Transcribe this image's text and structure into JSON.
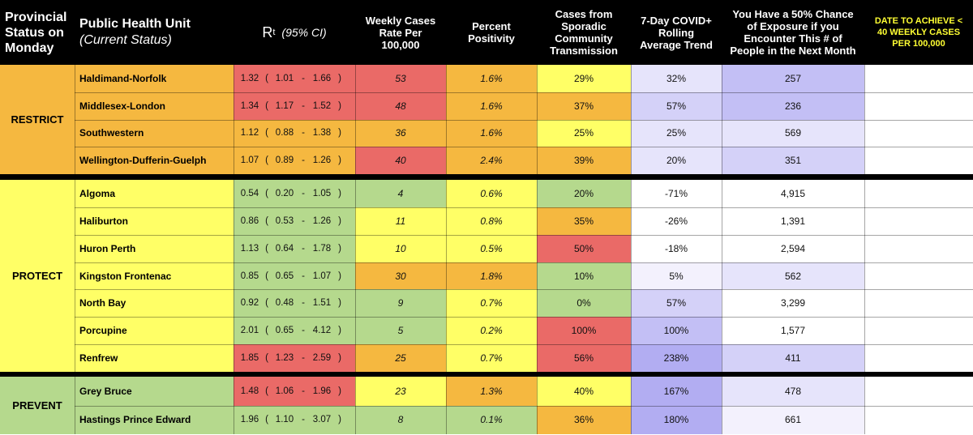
{
  "colors": {
    "restrict": "#f5b840",
    "protect": "#ffff66",
    "prevent": "#b5d98d",
    "red": "#ea6a67",
    "orange": "#f5b840",
    "yellow": "#ffff66",
    "green": "#b5d98d",
    "purple_1": "#f3f1fd",
    "purple_2": "#e6e4fb",
    "purple_3": "#d4d1f8",
    "purple_4": "#c3bff5",
    "purple_5": "#b2adf2"
  },
  "headers": {
    "status": "Provincial Status on Monday",
    "unit": "Public Health Unit",
    "unit_sub": "(Current Status)",
    "rt": "R",
    "rt_sub": "t",
    "rt_ci": "(95% CI)",
    "weekly": "Weekly Cases Rate Per 100,000",
    "positivity": "Percent Positivity",
    "sporadic": "Cases from Sporadic Community Transmission",
    "trend": "7-Day COVID+ Rolling Average Trend",
    "exposure": "You Have a 50% Chance of Exposure if you Encounter This # of People in the Next Month",
    "date": "DATE TO ACHIEVE < 40 WEEKLY CASES PER 100,000"
  },
  "groups": [
    {
      "status": "RESTRICT",
      "color": "restrict",
      "rows": [
        {
          "unit": "Haldimand-Norfolk",
          "rt": "1.32",
          "lo": "1.01",
          "hi": "1.66",
          "rt_color": "red",
          "weekly": "53",
          "weekly_color": "red",
          "pos": "1.6%",
          "pos_color": "orange",
          "spor": "29%",
          "spor_color": "yellow",
          "trend": "32%",
          "trend_color": "purple_2",
          "exp": "257",
          "exp_color": "purple_4",
          "date": ""
        },
        {
          "unit": "Middlesex-London",
          "rt": "1.34",
          "lo": "1.17",
          "hi": "1.52",
          "rt_color": "red",
          "weekly": "48",
          "weekly_color": "red",
          "pos": "1.6%",
          "pos_color": "orange",
          "spor": "37%",
          "spor_color": "orange",
          "trend": "57%",
          "trend_color": "purple_3",
          "exp": "236",
          "exp_color": "purple_4",
          "date": ""
        },
        {
          "unit": "Southwestern",
          "rt": "1.12",
          "lo": "0.88",
          "hi": "1.38",
          "rt_color": "orange",
          "weekly": "36",
          "weekly_color": "orange",
          "pos": "1.6%",
          "pos_color": "orange",
          "spor": "25%",
          "spor_color": "yellow",
          "trend": "25%",
          "trend_color": "purple_2",
          "exp": "569",
          "exp_color": "purple_2",
          "date": ""
        },
        {
          "unit": "Wellington-Dufferin-Guelph",
          "rt": "1.07",
          "lo": "0.89",
          "hi": "1.26",
          "rt_color": "orange",
          "weekly": "40",
          "weekly_color": "red",
          "pos": "2.4%",
          "pos_color": "orange",
          "spor": "39%",
          "spor_color": "orange",
          "trend": "20%",
          "trend_color": "purple_2",
          "exp": "351",
          "exp_color": "purple_3",
          "date": ""
        }
      ]
    },
    {
      "status": "PROTECT",
      "color": "protect",
      "rows": [
        {
          "unit": "Algoma",
          "rt": "0.54",
          "lo": "0.20",
          "hi": "1.05",
          "rt_color": "green",
          "weekly": "4",
          "weekly_color": "green",
          "pos": "0.6%",
          "pos_color": "yellow",
          "spor": "20%",
          "spor_color": "green",
          "trend": "-71%",
          "trend_color": "",
          "exp": "4,915",
          "exp_color": "",
          "date": ""
        },
        {
          "unit": "Haliburton",
          "rt": "0.86",
          "lo": "0.53",
          "hi": "1.26",
          "rt_color": "green",
          "weekly": "11",
          "weekly_color": "yellow",
          "pos": "0.8%",
          "pos_color": "yellow",
          "spor": "35%",
          "spor_color": "orange",
          "trend": "-26%",
          "trend_color": "",
          "exp": "1,391",
          "exp_color": "",
          "date": ""
        },
        {
          "unit": "Huron Perth",
          "rt": "1.13",
          "lo": "0.64",
          "hi": "1.78",
          "rt_color": "green",
          "weekly": "10",
          "weekly_color": "yellow",
          "pos": "0.5%",
          "pos_color": "yellow",
          "spor": "50%",
          "spor_color": "red",
          "trend": "-18%",
          "trend_color": "",
          "exp": "2,594",
          "exp_color": "",
          "date": ""
        },
        {
          "unit": "Kingston Frontenac",
          "rt": "0.85",
          "lo": "0.65",
          "hi": "1.07",
          "rt_color": "green",
          "weekly": "30",
          "weekly_color": "orange",
          "pos": "1.8%",
          "pos_color": "orange",
          "spor": "10%",
          "spor_color": "green",
          "trend": "5%",
          "trend_color": "purple_1",
          "exp": "562",
          "exp_color": "purple_2",
          "date": ""
        },
        {
          "unit": "North Bay",
          "rt": "0.92",
          "lo": "0.48",
          "hi": "1.51",
          "rt_color": "green",
          "weekly": "9",
          "weekly_color": "green",
          "pos": "0.7%",
          "pos_color": "yellow",
          "spor": "0%",
          "spor_color": "green",
          "trend": "57%",
          "trend_color": "purple_3",
          "exp": "3,299",
          "exp_color": "",
          "date": ""
        },
        {
          "unit": "Porcupine",
          "rt": "2.01",
          "lo": "0.65",
          "hi": "4.12",
          "rt_color": "green",
          "weekly": "5",
          "weekly_color": "green",
          "pos": "0.2%",
          "pos_color": "yellow",
          "spor": "100%",
          "spor_color": "red",
          "trend": "100%",
          "trend_color": "purple_4",
          "exp": "1,577",
          "exp_color": "",
          "date": ""
        },
        {
          "unit": "Renfrew",
          "rt": "1.85",
          "lo": "1.23",
          "hi": "2.59",
          "rt_color": "red",
          "weekly": "25",
          "weekly_color": "orange",
          "pos": "0.7%",
          "pos_color": "yellow",
          "spor": "56%",
          "spor_color": "red",
          "trend": "238%",
          "trend_color": "purple_5",
          "exp": "411",
          "exp_color": "purple_3",
          "date": ""
        }
      ]
    },
    {
      "status": "PREVENT",
      "color": "prevent",
      "rows": [
        {
          "unit": "Grey Bruce",
          "rt": "1.48",
          "lo": "1.06",
          "hi": "1.96",
          "rt_color": "red",
          "weekly": "23",
          "weekly_color": "yellow",
          "pos": "1.3%",
          "pos_color": "orange",
          "spor": "40%",
          "spor_color": "yellow",
          "trend": "167%",
          "trend_color": "purple_5",
          "exp": "478",
          "exp_color": "purple_2",
          "date": ""
        },
        {
          "unit": "Hastings Prince Edward",
          "rt": "1.96",
          "lo": "1.10",
          "hi": "3.07",
          "rt_color": "green",
          "weekly": "8",
          "weekly_color": "green",
          "pos": "0.1%",
          "pos_color": "green",
          "spor": "36%",
          "spor_color": "orange",
          "trend": "180%",
          "trend_color": "purple_5",
          "exp": "661",
          "exp_color": "purple_1",
          "date": ""
        }
      ]
    }
  ]
}
